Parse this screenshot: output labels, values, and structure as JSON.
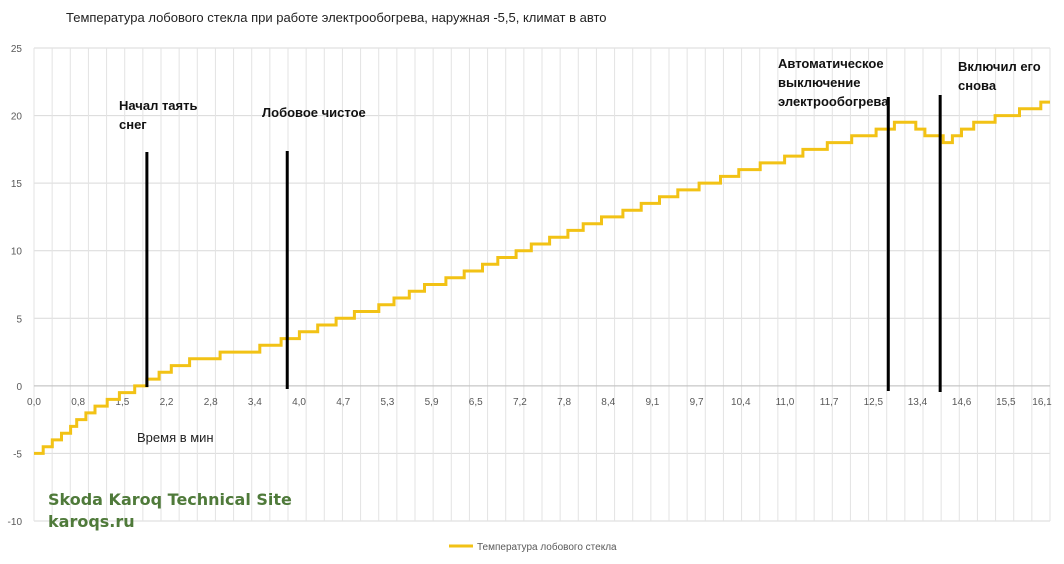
{
  "chart_data": {
    "type": "line",
    "title": "Температура лобового стекла при работе электрообогрева, наружная -5,5, климат в авто",
    "xlabel": "Время в мин",
    "ylabel": "",
    "ylim": [
      -10,
      25
    ],
    "y_ticks": [
      "25",
      "20",
      "15",
      "10",
      "5",
      "0",
      "-5",
      "-10"
    ],
    "x_tick_labels": [
      "0,0",
      "0,8",
      "1,5",
      "2,2",
      "2,8",
      "3,4",
      "4,0",
      "4,7",
      "5,3",
      "5,9",
      "6,5",
      "7,2",
      "7,8",
      "8,4",
      "9,1",
      "9,7",
      "10,4",
      "11,0",
      "11,7",
      "12,5",
      "13,4",
      "14,6",
      "15,5",
      "16,1"
    ],
    "grid": true,
    "legend_position": "bottom",
    "series": [
      {
        "name": "Температура лобового стекла",
        "color": "#f2c215",
        "points": [
          [
            0.0,
            -5.0
          ],
          [
            0.15,
            -4.5
          ],
          [
            0.3,
            -4.0
          ],
          [
            0.45,
            -3.5
          ],
          [
            0.6,
            -3.0
          ],
          [
            0.7,
            -2.5
          ],
          [
            0.85,
            -2.0
          ],
          [
            1.0,
            -1.5
          ],
          [
            1.2,
            -1.0
          ],
          [
            1.4,
            -0.5
          ],
          [
            1.65,
            0.0
          ],
          [
            1.85,
            0.5
          ],
          [
            2.05,
            1.0
          ],
          [
            2.25,
            1.5
          ],
          [
            2.55,
            2.0
          ],
          [
            3.05,
            2.5
          ],
          [
            3.7,
            3.0
          ],
          [
            4.05,
            3.5
          ],
          [
            4.35,
            4.0
          ],
          [
            4.65,
            4.5
          ],
          [
            4.95,
            5.0
          ],
          [
            5.25,
            5.5
          ],
          [
            5.65,
            6.0
          ],
          [
            5.9,
            6.5
          ],
          [
            6.15,
            7.0
          ],
          [
            6.4,
            7.5
          ],
          [
            6.75,
            8.0
          ],
          [
            7.05,
            8.5
          ],
          [
            7.35,
            9.0
          ],
          [
            7.6,
            9.5
          ],
          [
            7.9,
            10.0
          ],
          [
            8.15,
            10.5
          ],
          [
            8.45,
            11.0
          ],
          [
            8.75,
            11.5
          ],
          [
            9.0,
            12.0
          ],
          [
            9.3,
            12.5
          ],
          [
            9.65,
            13.0
          ],
          [
            9.95,
            13.5
          ],
          [
            10.25,
            14.0
          ],
          [
            10.55,
            14.5
          ],
          [
            10.9,
            15.0
          ],
          [
            11.25,
            15.5
          ],
          [
            11.55,
            16.0
          ],
          [
            11.9,
            16.5
          ],
          [
            12.3,
            17.0
          ],
          [
            12.6,
            17.5
          ],
          [
            13.0,
            18.0
          ],
          [
            13.4,
            18.5
          ],
          [
            13.8,
            19.0
          ],
          [
            14.1,
            19.5
          ],
          [
            14.45,
            19.0
          ],
          [
            14.6,
            18.5
          ],
          [
            14.9,
            18.0
          ],
          [
            15.05,
            18.5
          ],
          [
            15.2,
            19.0
          ],
          [
            15.4,
            19.5
          ],
          [
            15.75,
            20.0
          ],
          [
            16.15,
            20.5
          ],
          [
            16.5,
            21.0
          ],
          [
            16.65,
            21.0
          ]
        ]
      }
    ],
    "annotations": [
      {
        "text_lines": [
          "Начал таять",
          "снег"
        ],
        "x": 1.85
      },
      {
        "text_lines": [
          "Лобовое чистое"
        ],
        "x": 4.15
      },
      {
        "text_lines": [
          "Автоматическое",
          "выключение",
          "электрообогрева"
        ],
        "x": 14.0
      },
      {
        "text_lines": [
          "Включил его",
          "снова"
        ],
        "x": 14.85
      }
    ]
  },
  "watermark": {
    "line1": "Skoda Karoq Technical Site",
    "line2": "karoqs.ru"
  }
}
